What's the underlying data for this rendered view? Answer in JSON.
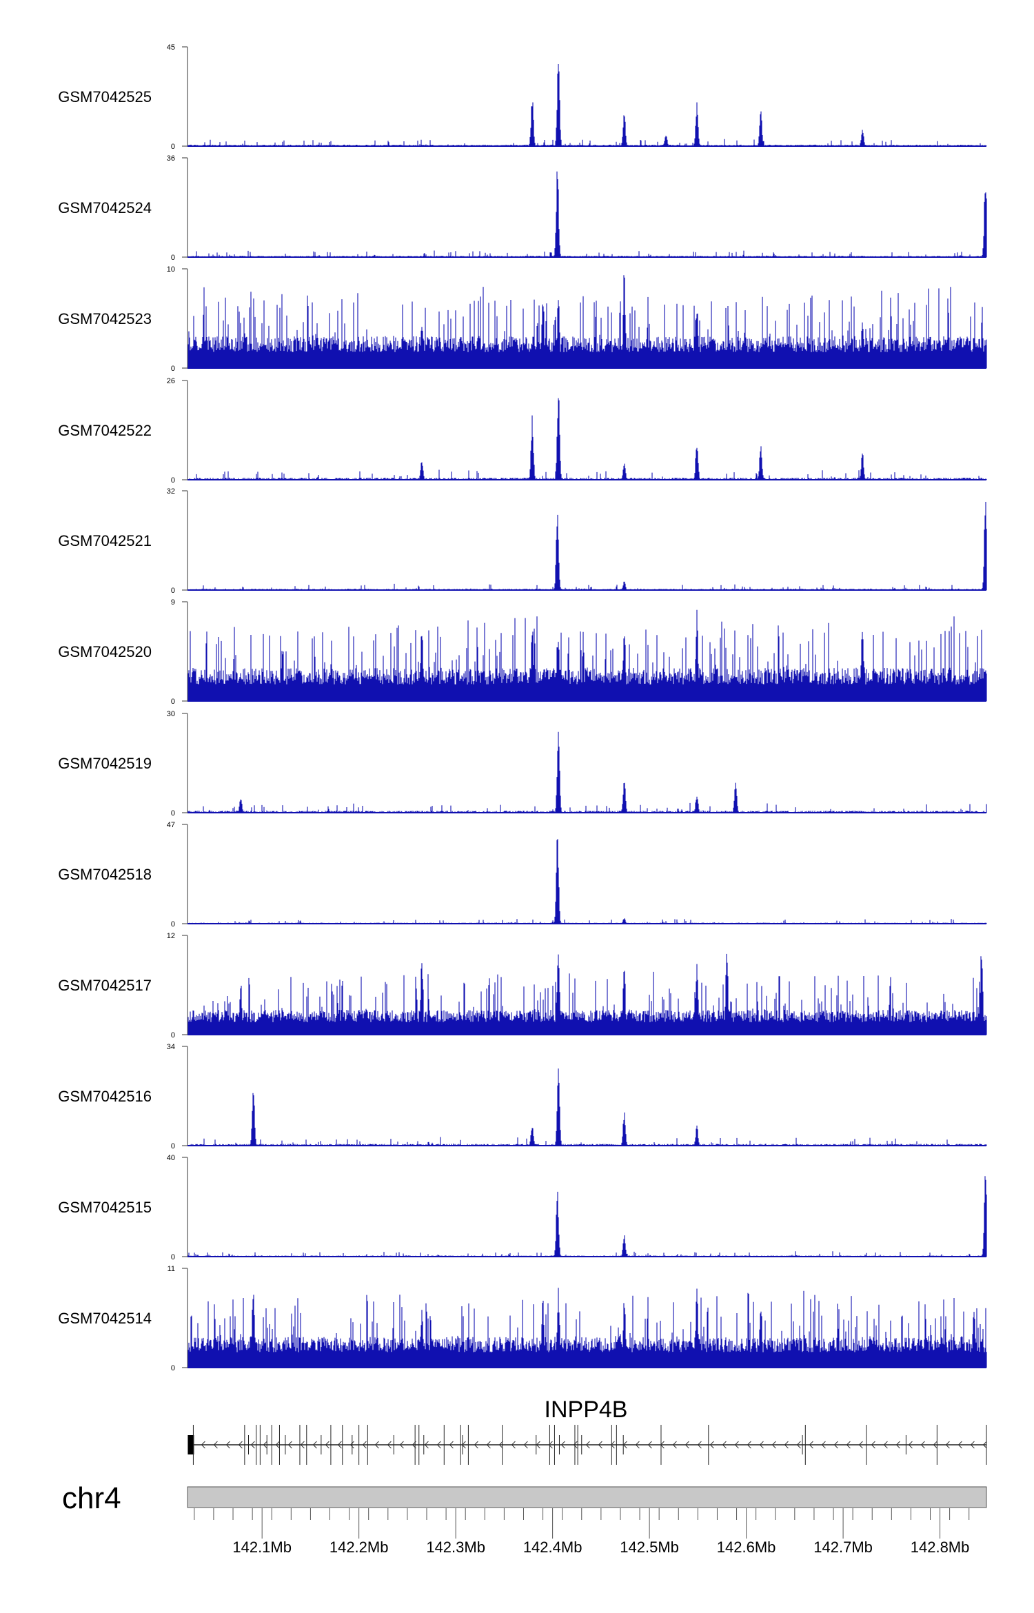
{
  "chart_data": {
    "type": "area",
    "title": "",
    "xlabel": "chr4",
    "xunit": "Mb",
    "xlim": [
      142.023,
      142.848
    ],
    "x_ticks": [
      "142.1Mb",
      "142.2Mb",
      "142.3Mb",
      "142.4Mb",
      "142.5Mb",
      "142.6Mb",
      "142.7Mb",
      "142.8Mb"
    ],
    "x_tick_values": [
      142.1,
      142.2,
      142.3,
      142.4,
      142.5,
      142.6,
      142.7,
      142.8
    ],
    "color": "#1010b0",
    "series": [
      {
        "name": "GSM7042525",
        "ymax": 45,
        "ymin_label": "0",
        "ymax_label": "45",
        "noise": 2.2,
        "peaks": [
          [
            142.406,
            45
          ],
          [
            142.379,
            24
          ],
          [
            142.474,
            16
          ],
          [
            142.549,
            20
          ],
          [
            142.615,
            17
          ],
          [
            142.72,
            8
          ],
          [
            142.517,
            6
          ]
        ]
      },
      {
        "name": "GSM7042524",
        "ymax": 36,
        "ymin_label": "0",
        "ymax_label": "36",
        "noise": 1.6,
        "peaks": [
          [
            142.405,
            35
          ],
          [
            142.847,
            32
          ]
        ]
      },
      {
        "name": "GSM7042523",
        "ymax": 10,
        "ymin_label": "0",
        "ymax_label": "10",
        "noise": 3.2,
        "peaks": [
          [
            142.474,
            10
          ],
          [
            142.39,
            8.5
          ],
          [
            142.406,
            7.5
          ],
          [
            142.549,
            7
          ],
          [
            142.265,
            5.5
          ],
          [
            142.72,
            5
          ]
        ]
      },
      {
        "name": "GSM7042522",
        "ymax": 26,
        "ymin_label": "0",
        "ymax_label": "26",
        "noise": 1.8,
        "peaks": [
          [
            142.406,
            25
          ],
          [
            142.379,
            17
          ],
          [
            142.549,
            11
          ],
          [
            142.615,
            10
          ],
          [
            142.72,
            7.5
          ],
          [
            142.265,
            5.5
          ],
          [
            142.474,
            5
          ]
        ]
      },
      {
        "name": "GSM7042521",
        "ymax": 32,
        "ymin_label": "0",
        "ymax_label": "32",
        "noise": 1.4,
        "peaks": [
          [
            142.405,
            28
          ],
          [
            142.847,
            31
          ],
          [
            142.474,
            3
          ]
        ]
      },
      {
        "name": "GSM7042520",
        "ymax": 9,
        "ymin_label": "0",
        "ymax_label": "9",
        "noise": 3.0,
        "peaks": [
          [
            142.549,
            9
          ],
          [
            142.72,
            8
          ],
          [
            142.265,
            7.5
          ],
          [
            142.474,
            7.5
          ],
          [
            142.379,
            7.5
          ],
          [
            142.406,
            6
          ]
        ]
      },
      {
        "name": "GSM7042519",
        "ymax": 30,
        "ymin_label": "0",
        "ymax_label": "30",
        "noise": 2.0,
        "peaks": [
          [
            142.406,
            29
          ],
          [
            142.474,
            11
          ],
          [
            142.589,
            10
          ],
          [
            142.549,
            6
          ],
          [
            142.078,
            5
          ]
        ]
      },
      {
        "name": "GSM7042518",
        "ymax": 47,
        "ymin_label": "0",
        "ymax_label": "47",
        "noise": 1.6,
        "peaks": [
          [
            142.405,
            46
          ],
          [
            142.474,
            3
          ]
        ]
      },
      {
        "name": "GSM7042517",
        "ymax": 12,
        "ymin_label": "0",
        "ymax_label": "12",
        "noise": 3.0,
        "peaks": [
          [
            142.406,
            11
          ],
          [
            142.474,
            9
          ],
          [
            142.549,
            9
          ],
          [
            142.58,
            11
          ],
          [
            142.843,
            12
          ],
          [
            142.265,
            10
          ],
          [
            142.078,
            7
          ]
        ]
      },
      {
        "name": "GSM7042516",
        "ymax": 34,
        "ymin_label": "0",
        "ymax_label": "34",
        "noise": 2.0,
        "peaks": [
          [
            142.406,
            31
          ],
          [
            142.091,
            22
          ],
          [
            142.474,
            12
          ],
          [
            142.549,
            7
          ],
          [
            142.379,
            8
          ]
        ]
      },
      {
        "name": "GSM7042515",
        "ymax": 40,
        "ymin_label": "0",
        "ymax_label": "40",
        "noise": 1.5,
        "peaks": [
          [
            142.405,
            28
          ],
          [
            142.474,
            10
          ],
          [
            142.847,
            38
          ]
        ]
      },
      {
        "name": "GSM7042514",
        "ymax": 11,
        "ymin_label": "0",
        "ymax_label": "11",
        "noise": 3.4,
        "peaks": [
          [
            142.091,
            10.5
          ],
          [
            142.406,
            9.5
          ],
          [
            142.474,
            8.5
          ],
          [
            142.549,
            10
          ],
          [
            142.615,
            8
          ],
          [
            142.835,
            8
          ],
          [
            142.265,
            7
          ],
          [
            142.39,
            8
          ]
        ]
      }
    ],
    "gene": {
      "name": "INPP4B",
      "strand": "-",
      "exons_mb": [
        142.029,
        142.082,
        142.086,
        142.094,
        142.098,
        142.105,
        142.11,
        142.118,
        142.124,
        142.139,
        142.146,
        142.161,
        142.171,
        142.183,
        142.193,
        142.2,
        142.209,
        142.236,
        142.258,
        142.262,
        142.267,
        142.288,
        142.305,
        142.307,
        142.313,
        142.348,
        142.383,
        142.397,
        142.402,
        142.407,
        142.423,
        142.426,
        142.43,
        142.461,
        142.466,
        142.473,
        142.512,
        142.561,
        142.658,
        142.661,
        142.724,
        142.765,
        142.797,
        142.848
      ]
    },
    "chromosome": "chr4"
  }
}
